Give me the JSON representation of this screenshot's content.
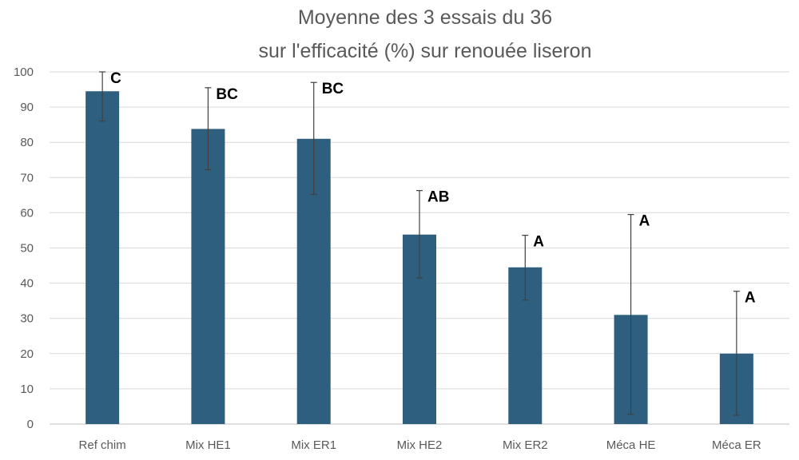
{
  "chart_data": {
    "type": "bar",
    "title": [
      "Moyenne des 3 essais du 36",
      "sur l'efficacité (%) sur renouée liseron"
    ],
    "xlabel": "",
    "ylabel": "",
    "ylim": [
      0,
      100
    ],
    "yticks": [
      0,
      10,
      20,
      30,
      40,
      50,
      60,
      70,
      80,
      90,
      100
    ],
    "grid": true,
    "legend": "none",
    "categories": [
      "Ref chim",
      "Mix HE1",
      "Mix ER1",
      "Mix HE2",
      "Mix ER2",
      "Méca HE",
      "Méca ER"
    ],
    "values": [
      94.5,
      83.8,
      81.0,
      53.8,
      44.5,
      31.0,
      20.0
    ],
    "error_low": [
      86.0,
      72.2,
      65.2,
      41.5,
      35.2,
      2.8,
      2.5
    ],
    "error_high": [
      100.0,
      95.5,
      97.0,
      66.3,
      53.6,
      59.5,
      37.7
    ],
    "group_labels": [
      "C",
      "BC",
      "BC",
      "AB",
      "A",
      "A",
      "A"
    ],
    "colors": {
      "bar": "#2e5f7f",
      "grid": "#d9d9d9",
      "text": "#595959",
      "error_bar": "#404040"
    }
  }
}
